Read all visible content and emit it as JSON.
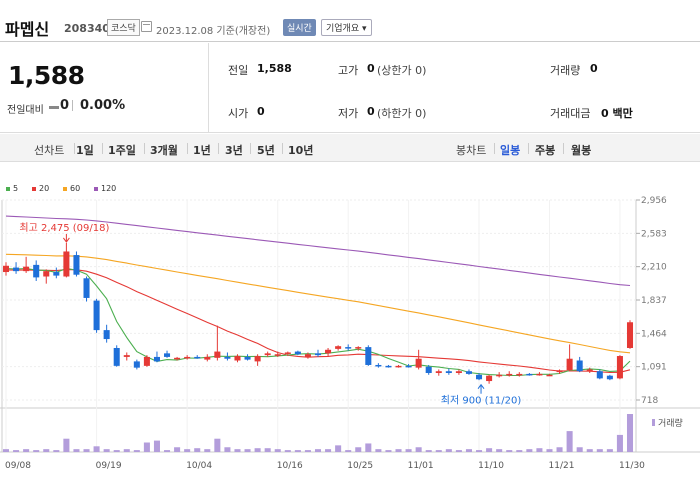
{
  "header": {
    "stock_name": "파멥신",
    "stock_code": "208340",
    "market": "코스닥",
    "date_text": "2023.12.08 기준(개장전)",
    "realtime_label": "실시간",
    "company_info_label": "기업개요 ▾"
  },
  "summary": {
    "price": "1,588",
    "change_label": "전일대비",
    "change_value": "0",
    "change_pct": "0.00%",
    "fields": {
      "prev_close": {
        "label": "전일",
        "value": "1,588"
      },
      "high": {
        "label": "고가",
        "value": "0",
        "sub": "(상한가 0)"
      },
      "volume": {
        "label": "거래량",
        "value": "0"
      },
      "open": {
        "label": "시가",
        "value": "0"
      },
      "low": {
        "label": "저가",
        "value": "0",
        "sub": "(하한가 0)"
      },
      "trade_amount": {
        "label": "거래대금",
        "value": "0 백만"
      }
    }
  },
  "toolbar": {
    "line_chart_label": "선차트",
    "periods": [
      "1일",
      "1주일",
      "3개월",
      "1년",
      "3년",
      "5년",
      "10년"
    ],
    "candle_chart_label": "봉차트",
    "candle_periods": [
      "일봉",
      "주봉",
      "월봉"
    ],
    "active_candle": "일봉"
  },
  "chart_data": {
    "type": "candlestick",
    "moving_averages": [
      {
        "name": "5",
        "color": "#4caf50"
      },
      {
        "name": "20",
        "color": "#e53935"
      },
      {
        "name": "60",
        "color": "#f5a623"
      },
      {
        "name": "120",
        "color": "#9b59b6"
      }
    ],
    "y_ticks": [
      "2,956",
      "2,583",
      "2,210",
      "1,837",
      "1,464",
      "1,091",
      "718"
    ],
    "ylim": [
      718,
      2956
    ],
    "x_ticks": [
      "09/08",
      "09/19",
      "10/04",
      "10/16",
      "10/25",
      "11/01",
      "11/10",
      "11/21",
      "11/30"
    ],
    "max_annotation": "최고 2,475 (09/18)",
    "min_annotation": "최저 900 (11/20)",
    "volume_label": "거래량",
    "up_color": "#e53935",
    "down_color": "#1e6fd9",
    "candles": [
      {
        "o": 2150,
        "h": 2260,
        "l": 2110,
        "c": 2220
      },
      {
        "o": 2200,
        "h": 2260,
        "l": 2130,
        "c": 2160
      },
      {
        "o": 2160,
        "h": 2320,
        "l": 2140,
        "c": 2210
      },
      {
        "o": 2230,
        "h": 2280,
        "l": 2050,
        "c": 2090
      },
      {
        "o": 2100,
        "h": 2180,
        "l": 2020,
        "c": 2160
      },
      {
        "o": 2150,
        "h": 2200,
        "l": 2080,
        "c": 2110
      },
      {
        "o": 2100,
        "h": 2475,
        "l": 2090,
        "c": 2380
      },
      {
        "o": 2340,
        "h": 2380,
        "l": 2100,
        "c": 2120
      },
      {
        "o": 2080,
        "h": 2100,
        "l": 1820,
        "c": 1860
      },
      {
        "o": 1830,
        "h": 1850,
        "l": 1470,
        "c": 1500
      },
      {
        "o": 1500,
        "h": 1560,
        "l": 1360,
        "c": 1400
      },
      {
        "o": 1300,
        "h": 1330,
        "l": 1090,
        "c": 1100
      },
      {
        "o": 1200,
        "h": 1250,
        "l": 1160,
        "c": 1220
      },
      {
        "o": 1150,
        "h": 1170,
        "l": 1060,
        "c": 1080
      },
      {
        "o": 1100,
        "h": 1220,
        "l": 1090,
        "c": 1200
      },
      {
        "o": 1200,
        "h": 1260,
        "l": 1140,
        "c": 1150
      },
      {
        "o": 1240,
        "h": 1270,
        "l": 1190,
        "c": 1200
      },
      {
        "o": 1180,
        "h": 1200,
        "l": 1160,
        "c": 1190
      },
      {
        "o": 1190,
        "h": 1220,
        "l": 1170,
        "c": 1200
      },
      {
        "o": 1200,
        "h": 1220,
        "l": 1180,
        "c": 1190
      },
      {
        "o": 1170,
        "h": 1230,
        "l": 1150,
        "c": 1200
      },
      {
        "o": 1190,
        "h": 1550,
        "l": 1160,
        "c": 1260
      },
      {
        "o": 1200,
        "h": 1250,
        "l": 1160,
        "c": 1180
      },
      {
        "o": 1160,
        "h": 1230,
        "l": 1140,
        "c": 1210
      },
      {
        "o": 1200,
        "h": 1230,
        "l": 1160,
        "c": 1170
      },
      {
        "o": 1150,
        "h": 1230,
        "l": 1100,
        "c": 1210
      },
      {
        "o": 1220,
        "h": 1260,
        "l": 1200,
        "c": 1240
      },
      {
        "o": 1230,
        "h": 1260,
        "l": 1200,
        "c": 1230
      },
      {
        "o": 1240,
        "h": 1260,
        "l": 1210,
        "c": 1250
      },
      {
        "o": 1260,
        "h": 1270,
        "l": 1220,
        "c": 1230
      },
      {
        "o": 1200,
        "h": 1250,
        "l": 1180,
        "c": 1230
      },
      {
        "o": 1240,
        "h": 1280,
        "l": 1200,
        "c": 1220
      },
      {
        "o": 1240,
        "h": 1300,
        "l": 1210,
        "c": 1280
      },
      {
        "o": 1290,
        "h": 1330,
        "l": 1270,
        "c": 1320
      },
      {
        "o": 1310,
        "h": 1340,
        "l": 1270,
        "c": 1300
      },
      {
        "o": 1300,
        "h": 1320,
        "l": 1270,
        "c": 1310
      },
      {
        "o": 1310,
        "h": 1330,
        "l": 1100,
        "c": 1110
      },
      {
        "o": 1110,
        "h": 1130,
        "l": 1080,
        "c": 1100
      },
      {
        "o": 1100,
        "h": 1110,
        "l": 1080,
        "c": 1090
      },
      {
        "o": 1090,
        "h": 1110,
        "l": 1080,
        "c": 1100
      },
      {
        "o": 1100,
        "h": 1120,
        "l": 1080,
        "c": 1090
      },
      {
        "o": 1080,
        "h": 1280,
        "l": 1060,
        "c": 1180
      },
      {
        "o": 1090,
        "h": 1110,
        "l": 1000,
        "c": 1020
      },
      {
        "o": 1020,
        "h": 1060,
        "l": 990,
        "c": 1040
      },
      {
        "o": 1040,
        "h": 1070,
        "l": 1000,
        "c": 1020
      },
      {
        "o": 1020,
        "h": 1060,
        "l": 1000,
        "c": 1040
      },
      {
        "o": 1040,
        "h": 1060,
        "l": 1000,
        "c": 1010
      },
      {
        "o": 1000,
        "h": 1020,
        "l": 940,
        "c": 950
      },
      {
        "o": 930,
        "h": 1000,
        "l": 900,
        "c": 990
      },
      {
        "o": 990,
        "h": 1030,
        "l": 970,
        "c": 1000
      },
      {
        "o": 1000,
        "h": 1040,
        "l": 980,
        "c": 1010
      },
      {
        "o": 1000,
        "h": 1030,
        "l": 980,
        "c": 1010
      },
      {
        "o": 1010,
        "h": 1020,
        "l": 990,
        "c": 1000
      },
      {
        "o": 1000,
        "h": 1030,
        "l": 990,
        "c": 1010
      },
      {
        "o": 1000,
        "h": 1010,
        "l": 990,
        "c": 1000
      },
      {
        "o": 1030,
        "h": 1060,
        "l": 1010,
        "c": 1050
      },
      {
        "o": 1050,
        "h": 1340,
        "l": 1040,
        "c": 1180
      },
      {
        "o": 1160,
        "h": 1200,
        "l": 1030,
        "c": 1040
      },
      {
        "o": 1050,
        "h": 1080,
        "l": 1020,
        "c": 1060
      },
      {
        "o": 1040,
        "h": 1060,
        "l": 950,
        "c": 960
      },
      {
        "o": 990,
        "h": 1000,
        "l": 940,
        "c": 950
      },
      {
        "o": 960,
        "h": 1220,
        "l": 950,
        "c": 1210
      },
      {
        "o": 1300,
        "h": 1610,
        "l": 1290,
        "c": 1588
      }
    ],
    "volume": [
      3,
      2,
      3,
      2,
      3,
      2,
      14,
      3,
      3,
      6,
      3,
      2,
      3,
      2,
      10,
      12,
      2,
      5,
      3,
      4,
      3,
      14,
      5,
      3,
      3,
      4,
      4,
      3,
      2,
      2,
      2,
      3,
      3,
      7,
      2,
      5,
      9,
      3,
      2,
      3,
      3,
      5,
      2,
      2,
      3,
      2,
      3,
      2,
      4,
      3,
      2,
      2,
      3,
      4,
      3,
      5,
      22,
      5,
      3,
      3,
      3,
      18,
      40
    ]
  }
}
